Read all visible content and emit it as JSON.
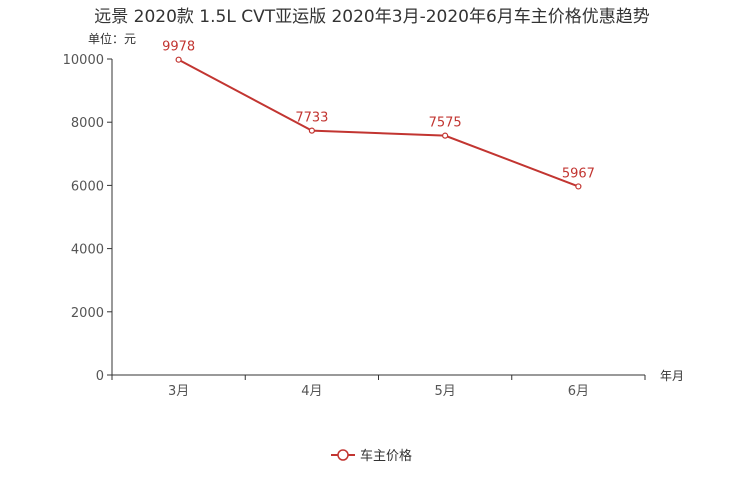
{
  "chart_data": {
    "type": "line",
    "title": "远景 2020款 1.5L CVT亚运版 2020年3月-2020年6月车主价格优惠趋势",
    "ylabel": "单位：元",
    "xlabel": "年月",
    "categories": [
      "3月",
      "4月",
      "5月",
      "6月"
    ],
    "series": [
      {
        "name": "车主价格",
        "values": [
          9978,
          7733,
          7575,
          5967
        ]
      }
    ],
    "ylim": [
      0,
      10000
    ],
    "yticks": [
      0,
      2000,
      4000,
      6000,
      8000,
      10000
    ],
    "legend": "bottom-center",
    "grid": false
  },
  "colors": {
    "series": "#c23531",
    "axis": "#333333",
    "tick_text": "#555555"
  }
}
